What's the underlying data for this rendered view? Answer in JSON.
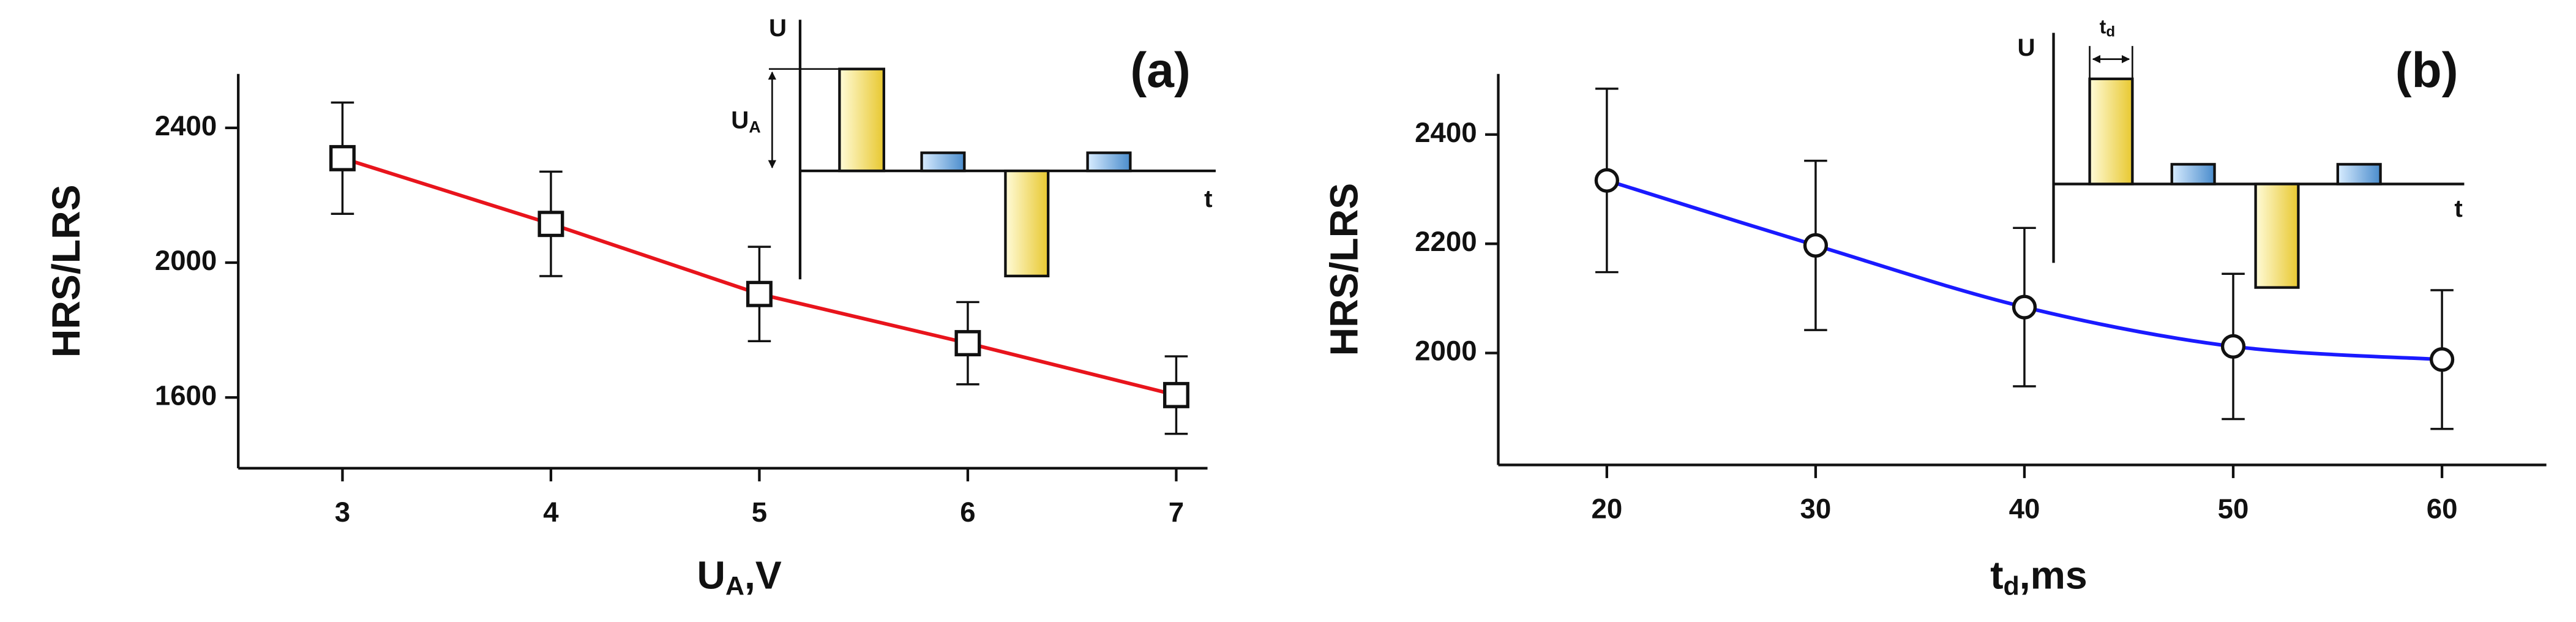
{
  "chart_data": [
    {
      "type": "line",
      "label": "(a)",
      "y_label": "HRS/LRS",
      "x_label": {
        "main": "U",
        "sub": "A",
        "rest": ",V"
      },
      "x": [
        3,
        4,
        5,
        6,
        7
      ],
      "values": [
        2310,
        2115,
        1907,
        1761,
        1607
      ],
      "errors": [
        165,
        155,
        140,
        122,
        115
      ],
      "color": "#e8141c",
      "marker": "square",
      "smooth": false,
      "xlim": [
        2.5,
        7.15
      ],
      "ylim": [
        1390,
        2560
      ],
      "xticks": [
        3,
        4,
        5,
        6,
        7
      ],
      "yticks": [
        1600,
        2000,
        2400
      ],
      "inset": {
        "y_label": "U",
        "amp_main": "U",
        "amp_sub": "A",
        "x_label": "t"
      }
    },
    {
      "type": "line",
      "label": "(b)",
      "y_label": "HRS/LRS",
      "x_label": {
        "main": "t",
        "sub": "d",
        "rest": ",ms"
      },
      "x": [
        20,
        30,
        40,
        50,
        60
      ],
      "values": [
        2316,
        2197,
        2084,
        2012,
        1988
      ],
      "errors": [
        168,
        155,
        145,
        133,
        127
      ],
      "color": "#1a1aff",
      "marker": "circle",
      "smooth": true,
      "xlim": [
        14.8,
        65
      ],
      "ylim": [
        1795,
        2511
      ],
      "xticks": [
        20,
        30,
        40,
        50,
        60
      ],
      "yticks": [
        2000,
        2200,
        2400
      ],
      "inset": {
        "y_label": "U",
        "width_main": "t",
        "width_sub": "d",
        "x_label": "t"
      }
    }
  ]
}
